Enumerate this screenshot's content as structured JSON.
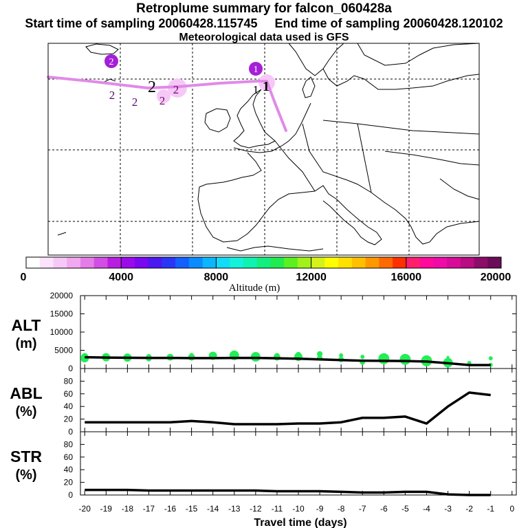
{
  "header": {
    "title": "Retroplume summary for falcon_060428a",
    "start_label": "Start time of sampling 20060428.115745",
    "end_label": "End time of sampling 20060428.120102",
    "met_label": "Meteorological data used is GFS"
  },
  "colorbar": {
    "label": "Altitude (m)",
    "ticks": [
      "0",
      "4000",
      "8000",
      "12000",
      "16000",
      "20000"
    ],
    "min": 0,
    "max": 20000,
    "colors": [
      "#ffffff",
      "#fbe3fb",
      "#f7c8f7",
      "#f1a8f1",
      "#e57de8",
      "#d24ee4",
      "#b81ee0",
      "#9a0bea",
      "#7a08f0",
      "#4c18f0",
      "#2a36f5",
      "#1460ff",
      "#0a8cff",
      "#0cb6ff",
      "#12dcf8",
      "#14f2dc",
      "#10f2b0",
      "#12ee80",
      "#20ec50",
      "#5cf020",
      "#a0f21a",
      "#d6f21a",
      "#fffe00",
      "#ffe000",
      "#ffc000",
      "#ff9800",
      "#ff6a00",
      "#ff3000",
      "#ff1e6e",
      "#ff0a9a",
      "#f00aa8",
      "#d80a9a",
      "#b80c80",
      "#8c0c6a",
      "#6a0c58"
    ]
  },
  "map": {
    "plume_labels": [
      {
        "text": "1",
        "kind": "marker",
        "color": "#a51ed8"
      },
      {
        "text": "1",
        "kind": "plain",
        "color": "#000000"
      },
      {
        "text": "1",
        "kind": "bold",
        "color": "#000000"
      },
      {
        "text": "2",
        "kind": "marker",
        "color": "#a51ed8"
      },
      {
        "text": "2",
        "kind": "plain",
        "color": "#5a0a6a"
      },
      {
        "text": "2",
        "kind": "plain",
        "color": "#5a0a6a"
      },
      {
        "text": "2",
        "kind": "big",
        "color": "#000000"
      },
      {
        "text": "2",
        "kind": "plain",
        "color": "#6a0a6a"
      },
      {
        "text": "2",
        "kind": "plain",
        "color": "#6a0a6a"
      }
    ]
  },
  "chart_data": [
    {
      "type": "line",
      "name": "ALT",
      "ylabel": "ALT\n(m)",
      "ylim": [
        0,
        20000
      ],
      "yticks": [
        0,
        5000,
        10000,
        15000,
        20000
      ],
      "x": [
        -20,
        -19,
        -18,
        -17,
        -16,
        -15,
        -14,
        -13,
        -12,
        -11,
        -10,
        -9,
        -8,
        -7,
        -6,
        -5,
        -4,
        -3,
        -2,
        -1
      ],
      "series": [
        {
          "name": "mean altitude",
          "color": "#000000",
          "values": [
            3100,
            3000,
            2950,
            2900,
            2900,
            2850,
            2850,
            2900,
            2900,
            2800,
            2700,
            2500,
            2300,
            2150,
            2100,
            2050,
            1900,
            1450,
            950,
            950
          ]
        }
      ],
      "scatter_color": "#22ee55",
      "scatter": [
        {
          "x": -20,
          "y": [
            2800,
            3300
          ],
          "size": [
            6,
            5
          ]
        },
        {
          "x": -19,
          "y": [
            3100
          ],
          "size": [
            6
          ]
        },
        {
          "x": -18,
          "y": [
            3000
          ],
          "size": [
            6
          ]
        },
        {
          "x": -17,
          "y": [
            2700,
            3200
          ],
          "size": [
            4,
            4
          ]
        },
        {
          "x": -16,
          "y": [
            3100
          ],
          "size": [
            5
          ]
        },
        {
          "x": -15,
          "y": [
            3100,
            3700
          ],
          "size": [
            5,
            3
          ]
        },
        {
          "x": -14,
          "y": [
            3500
          ],
          "size": [
            6
          ]
        },
        {
          "x": -13,
          "y": [
            3600
          ],
          "size": [
            7
          ]
        },
        {
          "x": -12,
          "y": [
            3200
          ],
          "size": [
            7
          ]
        },
        {
          "x": -11,
          "y": [
            3100,
            3500
          ],
          "size": [
            5,
            4
          ]
        },
        {
          "x": -10,
          "y": [
            3200,
            3800
          ],
          "size": [
            6,
            4
          ]
        },
        {
          "x": -9,
          "y": [
            2900,
            4000
          ],
          "size": [
            4,
            4
          ]
        },
        {
          "x": -8,
          "y": [
            2500,
            3600
          ],
          "size": [
            4,
            3
          ]
        },
        {
          "x": -7,
          "y": [
            1800,
            3200
          ],
          "size": [
            4,
            3
          ]
        },
        {
          "x": -6,
          "y": [
            2700
          ],
          "size": [
            8
          ]
        },
        {
          "x": -5,
          "y": [
            2500
          ],
          "size": [
            8
          ]
        },
        {
          "x": -4,
          "y": [
            2100
          ],
          "size": [
            8
          ]
        },
        {
          "x": -3,
          "y": [
            1600,
            3100
          ],
          "size": [
            7,
            2
          ]
        },
        {
          "x": -2,
          "y": [
            1500
          ],
          "size": [
            3
          ]
        },
        {
          "x": -1,
          "y": [
            1000,
            2800
          ],
          "size": [
            3,
            3
          ]
        }
      ]
    },
    {
      "type": "line",
      "name": "ABL",
      "ylabel": "ABL\n(%)",
      "ylim": [
        0,
        100
      ],
      "yticks": [
        0,
        20,
        40,
        60,
        80
      ],
      "x": [
        -20,
        -19,
        -18,
        -17,
        -16,
        -15,
        -14,
        -13,
        -12,
        -11,
        -10,
        -9,
        -8,
        -7,
        -6,
        -5,
        -4,
        -3,
        -2,
        -1
      ],
      "series": [
        {
          "name": "fraction in ABL",
          "color": "#000000",
          "values": [
            15,
            15,
            15,
            15,
            15,
            17,
            15,
            12,
            12,
            12,
            13,
            13,
            15,
            22,
            22,
            24,
            13,
            40,
            62,
            58
          ]
        }
      ]
    },
    {
      "type": "line",
      "name": "STR",
      "ylabel": "STR\n(%)",
      "ylim": [
        0,
        100
      ],
      "yticks": [
        0,
        20,
        40,
        60,
        80
      ],
      "xlabel": "Travel time (days)",
      "xticks": [
        -20,
        -19,
        -18,
        -17,
        -16,
        -15,
        -14,
        -13,
        -12,
        -11,
        -10,
        -9,
        -8,
        -7,
        -6,
        -5,
        -4,
        -3,
        -2,
        -1,
        0
      ],
      "x": [
        -20,
        -19,
        -18,
        -17,
        -16,
        -15,
        -14,
        -13,
        -12,
        -11,
        -10,
        -9,
        -8,
        -7,
        -6,
        -5,
        -4,
        -3,
        -2,
        -1
      ],
      "series": [
        {
          "name": "fraction in stratosphere",
          "color": "#000000",
          "values": [
            8,
            8,
            8,
            7,
            7,
            7,
            7,
            7,
            7,
            6,
            6,
            6,
            5,
            4,
            4,
            5,
            5,
            1,
            0,
            0
          ]
        }
      ]
    }
  ]
}
